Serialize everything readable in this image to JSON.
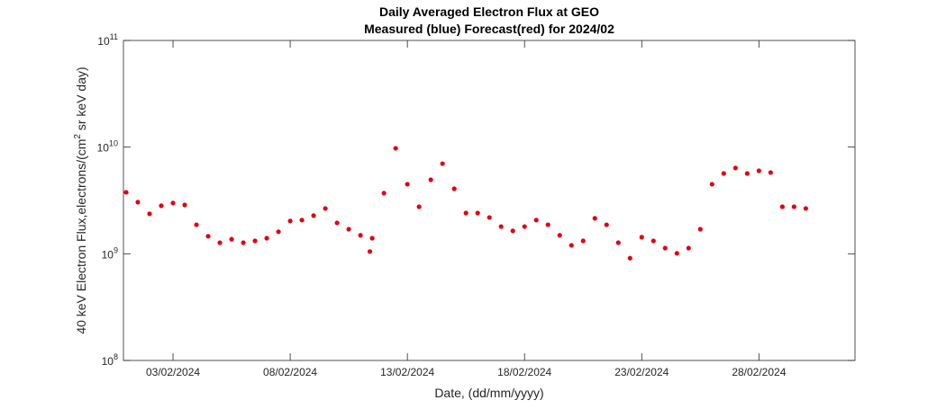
{
  "chart_data": {
    "type": "scatter",
    "title": "Daily Averaged Electron Flux at GEO",
    "subtitle": "Measured (blue) Forecast(red) for 2024/02",
    "xlabel": "Date, (dd/mm/yyyy)",
    "ylabel": {
      "text": "40 keV Electron Flux,electrons/(cm",
      "sup": "2",
      "rest": " sr keV day)"
    },
    "log_y": true,
    "color": "#e3000f",
    "xlim": [
      0.885,
      32.1
    ],
    "xticks": [
      {
        "value": 3,
        "label": "03/02/2024"
      },
      {
        "value": 8,
        "label": "08/02/2024"
      },
      {
        "value": 13,
        "label": "13/02/2024"
      },
      {
        "value": 18,
        "label": "18/02/2024"
      },
      {
        "value": 23,
        "label": "23/02/2024"
      },
      {
        "value": 28,
        "label": "28/02/2024"
      }
    ],
    "ylim": [
      100000000,
      100000000000
    ],
    "yticks": [
      {
        "value": 100000000,
        "label": "10",
        "exponent": "8"
      },
      {
        "value": 1000000000,
        "label": "10",
        "exponent": "9"
      },
      {
        "value": 10000000000,
        "label": "10",
        "exponent": "10"
      },
      {
        "value": 100000000000,
        "label": "10",
        "exponent": "11"
      }
    ],
    "x": [
      1,
      1.5,
      2,
      2.5,
      3,
      3.5,
      4,
      4.5,
      5,
      5.5,
      6,
      6.5,
      7,
      7.5,
      8,
      8.5,
      9,
      9.5,
      10,
      10.5,
      11,
      11.4,
      11.5,
      12,
      12.5,
      13,
      13.5,
      14,
      14.5,
      15,
      15.5,
      16,
      16.5,
      17,
      17.5,
      18,
      18.5,
      19,
      19.5,
      20,
      20.5,
      21,
      21.5,
      22,
      22.5,
      22.8,
      23,
      23.5,
      24,
      24.5,
      25,
      25.5,
      26,
      26.5,
      27,
      27.5,
      28,
      28.5,
      29,
      29.5,
      30
    ],
    "values": [
      3770000000,
      3050000000,
      2370000000,
      2820000000,
      2990000000,
      2870000000,
      1870000000,
      1460000000,
      1270000000,
      1370000000,
      1270000000,
      1320000000,
      1400000000,
      1610000000,
      2030000000,
      2070000000,
      2280000000,
      2660000000,
      1950000000,
      1700000000,
      1490000000,
      1050000000,
      1400000000,
      3700000000,
      9750000000,
      4490000000,
      2760000000,
      4940000000,
      7000000000,
      4070000000,
      2410000000,
      2410000000,
      2190000000,
      1800000000,
      1640000000,
      1800000000,
      2070000000,
      1870000000,
      1490000000,
      1200000000,
      1320000000,
      2150000000,
      1870000000,
      1270000000,
      910000000,
      null,
      1430000000,
      1320000000,
      1130000000,
      1010000000,
      1130000000,
      1700000000,
      4490000000,
      5660000000,
      6370000000,
      5660000000,
      6000000000,
      5780000000,
      2760000000,
      2760000000,
      2660000000
    ]
  }
}
